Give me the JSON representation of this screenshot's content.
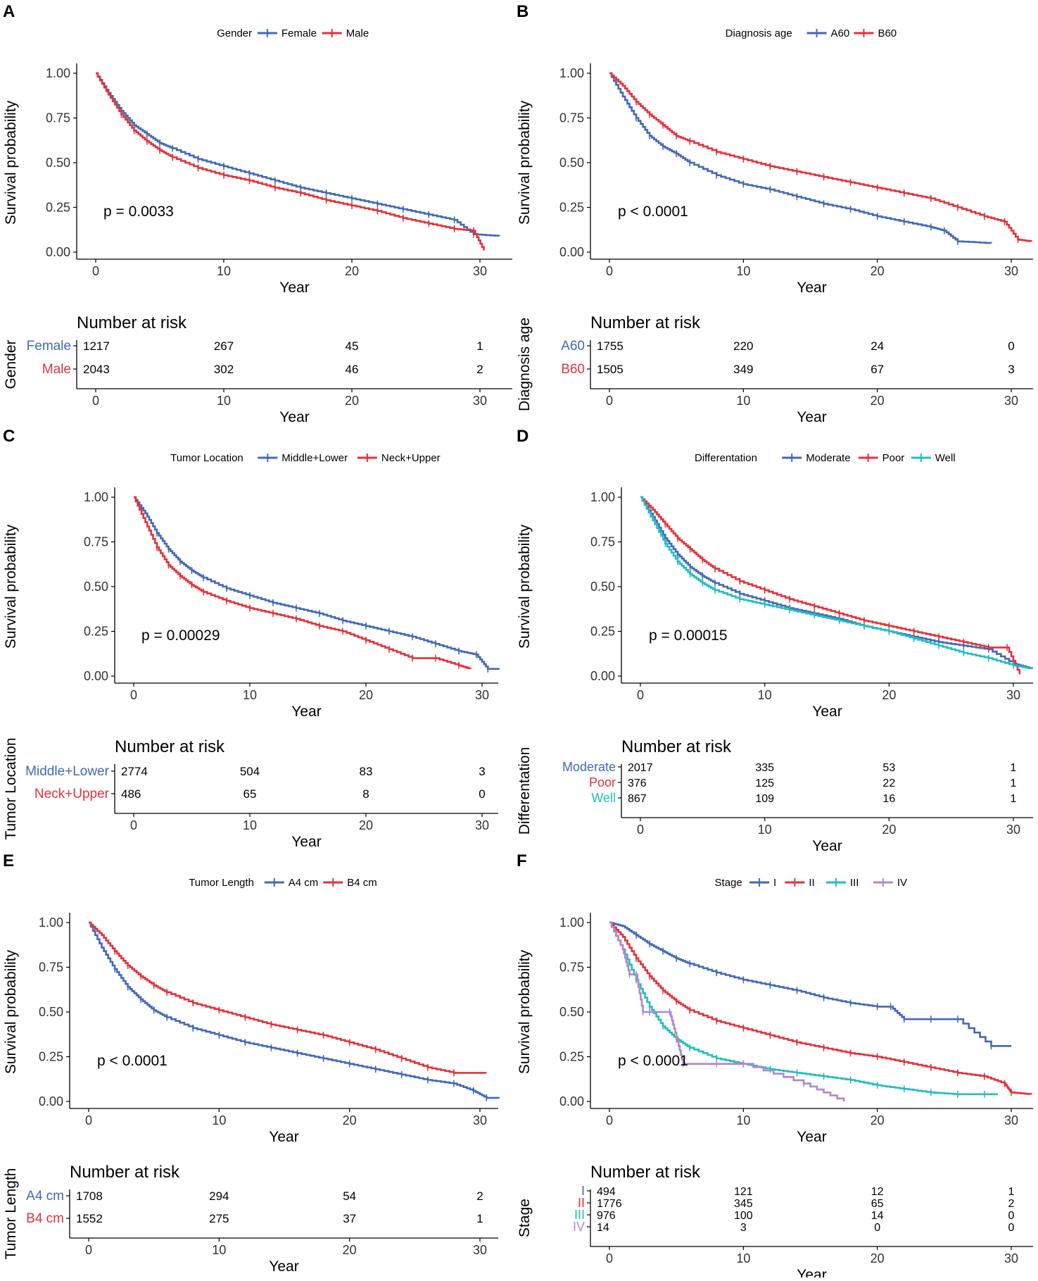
{
  "colors": {
    "blue": "#4169B6",
    "red": "#E2323B",
    "cyan": "#22BDBF",
    "purple": "#B088C8",
    "axis": "#000000"
  },
  "common": {
    "x_label": "Year",
    "y_label": "Survival probability",
    "risk_title": "Number at risk",
    "y_ticks": [
      "0.00",
      "0.25",
      "0.50",
      "0.75",
      "1.00"
    ],
    "x_ticks": [
      "0",
      "10",
      "20",
      "30"
    ]
  },
  "chart_data": [
    {
      "panel": "A",
      "type": "line",
      "legend_title": "Gender",
      "pvalue": "p = 0.0033",
      "xlim": [
        0,
        31.5
      ],
      "ylim": [
        0,
        1
      ],
      "risk_axis_title": "Gender",
      "series": [
        {
          "name": "Female",
          "color": "blue",
          "x": [
            0,
            1,
            2,
            3,
            4,
            5,
            6,
            8,
            10,
            12,
            14,
            16,
            18,
            20,
            22,
            24,
            26,
            28,
            29.5,
            31.5
          ],
          "y": [
            1.0,
            0.89,
            0.79,
            0.71,
            0.66,
            0.61,
            0.58,
            0.52,
            0.48,
            0.44,
            0.4,
            0.36,
            0.33,
            0.3,
            0.27,
            0.24,
            0.21,
            0.18,
            0.1,
            0.09
          ],
          "risk": [
            "1217",
            "267",
            "45",
            "1"
          ]
        },
        {
          "name": "Male",
          "color": "red",
          "x": [
            0,
            1,
            2,
            3,
            4,
            5,
            6,
            8,
            10,
            12,
            14,
            16,
            18,
            20,
            22,
            24,
            26,
            28,
            29.5,
            30.3
          ],
          "y": [
            1.0,
            0.88,
            0.77,
            0.68,
            0.62,
            0.57,
            0.53,
            0.47,
            0.43,
            0.4,
            0.36,
            0.33,
            0.29,
            0.26,
            0.23,
            0.19,
            0.16,
            0.13,
            0.12,
            0.01
          ],
          "risk": [
            "2043",
            "302",
            "46",
            "2"
          ]
        }
      ]
    },
    {
      "panel": "B",
      "type": "line",
      "legend_title": "Diagnosis age",
      "pvalue": "p < 0.0001",
      "xlim": [
        0,
        31.5
      ],
      "ylim": [
        0,
        1
      ],
      "risk_axis_title": "Diagnosis age",
      "series": [
        {
          "name": "A60",
          "color": "blue",
          "x": [
            0,
            1,
            2,
            3,
            4,
            5,
            6,
            8,
            10,
            12,
            14,
            16,
            18,
            20,
            22,
            24,
            25,
            26,
            28.5
          ],
          "y": [
            1.0,
            0.87,
            0.75,
            0.65,
            0.59,
            0.55,
            0.5,
            0.43,
            0.38,
            0.35,
            0.31,
            0.27,
            0.24,
            0.2,
            0.17,
            0.14,
            0.12,
            0.06,
            0.05
          ],
          "risk": [
            "1755",
            "220",
            "24",
            "0"
          ]
        },
        {
          "name": "B60",
          "color": "red",
          "x": [
            0,
            1,
            2,
            3,
            4,
            5,
            6,
            8,
            10,
            12,
            14,
            16,
            18,
            20,
            22,
            24,
            26,
            28,
            29.5,
            30.5,
            31.5
          ],
          "y": [
            1.0,
            0.93,
            0.84,
            0.77,
            0.71,
            0.65,
            0.62,
            0.56,
            0.52,
            0.48,
            0.45,
            0.42,
            0.39,
            0.36,
            0.33,
            0.3,
            0.25,
            0.2,
            0.17,
            0.07,
            0.06
          ],
          "risk": [
            "1505",
            "349",
            "67",
            "3"
          ]
        }
      ]
    },
    {
      "panel": "C",
      "type": "line",
      "legend_title": "Tumor Location",
      "pvalue": "p = 0.00029",
      "xlim": [
        0,
        31.5
      ],
      "ylim": [
        0,
        1
      ],
      "risk_axis_title": "Tumor Location",
      "series": [
        {
          "name": "Middle+Lower",
          "color": "blue",
          "x": [
            0,
            1,
            2,
            3,
            4,
            5,
            6,
            8,
            10,
            12,
            14,
            16,
            18,
            20,
            22,
            24,
            26,
            28,
            29.5,
            30.5,
            31.5
          ],
          "y": [
            1.0,
            0.91,
            0.8,
            0.71,
            0.64,
            0.59,
            0.55,
            0.49,
            0.45,
            0.41,
            0.38,
            0.35,
            0.31,
            0.28,
            0.25,
            0.22,
            0.18,
            0.14,
            0.12,
            0.04,
            0.04
          ],
          "risk": [
            "2774",
            "504",
            "83",
            "3"
          ]
        },
        {
          "name": "Neck+Upper",
          "color": "red",
          "x": [
            0,
            1,
            2,
            3,
            4,
            5,
            6,
            8,
            10,
            12,
            14,
            16,
            18,
            20,
            22,
            24,
            26,
            28,
            29
          ],
          "y": [
            1.0,
            0.86,
            0.72,
            0.62,
            0.56,
            0.51,
            0.47,
            0.42,
            0.38,
            0.35,
            0.32,
            0.28,
            0.25,
            0.2,
            0.15,
            0.1,
            0.1,
            0.06,
            0.04
          ],
          "risk": [
            "486",
            "65",
            "8",
            "0"
          ]
        }
      ]
    },
    {
      "panel": "D",
      "type": "line",
      "legend_title": "Differentation",
      "pvalue": "p = 0.00015",
      "xlim": [
        0,
        31.5
      ],
      "ylim": [
        0,
        1
      ],
      "risk_axis_title": "Differentation",
      "series": [
        {
          "name": "Moderate",
          "color": "blue",
          "x": [
            0,
            1,
            2,
            3,
            4,
            5,
            6,
            8,
            10,
            12,
            14,
            16,
            18,
            20,
            22,
            24,
            26,
            28,
            30,
            31.5
          ],
          "y": [
            1.0,
            0.89,
            0.77,
            0.68,
            0.61,
            0.56,
            0.52,
            0.46,
            0.42,
            0.38,
            0.35,
            0.32,
            0.28,
            0.25,
            0.22,
            0.19,
            0.17,
            0.15,
            0.07,
            0.04
          ],
          "risk": [
            "2017",
            "335",
            "53",
            "1"
          ]
        },
        {
          "name": "Poor",
          "color": "red",
          "x": [
            0,
            1,
            2,
            3,
            4,
            5,
            6,
            8,
            10,
            12,
            14,
            16,
            18,
            20,
            22,
            24,
            26,
            28,
            29.5,
            30.5
          ],
          "y": [
            1.0,
            0.93,
            0.85,
            0.77,
            0.71,
            0.65,
            0.6,
            0.53,
            0.48,
            0.43,
            0.39,
            0.35,
            0.31,
            0.28,
            0.25,
            0.22,
            0.19,
            0.16,
            0.16,
            0.01
          ],
          "risk": [
            "376",
            "125",
            "22",
            "1"
          ]
        },
        {
          "name": "Well",
          "color": "cyan",
          "x": [
            0,
            1,
            2,
            3,
            4,
            5,
            6,
            8,
            10,
            12,
            14,
            16,
            18,
            20,
            22,
            24,
            26,
            28,
            30,
            31.5
          ],
          "y": [
            1.0,
            0.87,
            0.74,
            0.64,
            0.57,
            0.52,
            0.48,
            0.43,
            0.4,
            0.37,
            0.34,
            0.31,
            0.28,
            0.25,
            0.21,
            0.17,
            0.13,
            0.1,
            0.06,
            0.04
          ],
          "risk": [
            "867",
            "109",
            "16",
            "1"
          ]
        }
      ]
    },
    {
      "panel": "E",
      "type": "line",
      "legend_title": "Tumor Length",
      "pvalue": "p < 0.0001",
      "xlim": [
        0,
        31.5
      ],
      "ylim": [
        0,
        1
      ],
      "risk_axis_title": "Tumor Length",
      "series": [
        {
          "name": "A4 cm",
          "color": "blue",
          "x": [
            0,
            1,
            2,
            3,
            4,
            5,
            6,
            8,
            10,
            12,
            14,
            16,
            18,
            20,
            22,
            24,
            26,
            28,
            29.5,
            30.5,
            31.5
          ],
          "y": [
            1.0,
            0.86,
            0.74,
            0.64,
            0.57,
            0.51,
            0.47,
            0.41,
            0.37,
            0.33,
            0.3,
            0.27,
            0.24,
            0.21,
            0.18,
            0.15,
            0.12,
            0.1,
            0.06,
            0.02,
            0.02
          ],
          "risk": [
            "1708",
            "294",
            "54",
            "2"
          ]
        },
        {
          "name": "B4 cm",
          "color": "red",
          "x": [
            0,
            1,
            2,
            3,
            4,
            5,
            6,
            8,
            10,
            12,
            14,
            16,
            18,
            20,
            22,
            24,
            26,
            28,
            30.5
          ],
          "y": [
            1.0,
            0.93,
            0.84,
            0.76,
            0.7,
            0.65,
            0.61,
            0.55,
            0.51,
            0.47,
            0.43,
            0.4,
            0.37,
            0.33,
            0.29,
            0.24,
            0.19,
            0.16,
            0.16
          ],
          "risk": [
            "1552",
            "275",
            "37",
            "1"
          ]
        }
      ]
    },
    {
      "panel": "F",
      "type": "line",
      "legend_title": "Stage",
      "pvalue": "p < 0.0001",
      "xlim": [
        0,
        31.5
      ],
      "ylim": [
        0,
        1
      ],
      "risk_axis_title": "Stage",
      "series": [
        {
          "name": "I",
          "color": "blue",
          "x": [
            0,
            1,
            2,
            3,
            4,
            5,
            6,
            8,
            10,
            12,
            14,
            16,
            18,
            20,
            21,
            22,
            24,
            26,
            28.5,
            30
          ],
          "y": [
            1.0,
            0.98,
            0.93,
            0.88,
            0.84,
            0.8,
            0.77,
            0.72,
            0.68,
            0.65,
            0.62,
            0.58,
            0.55,
            0.53,
            0.53,
            0.46,
            0.46,
            0.46,
            0.31,
            0.31
          ],
          "risk": [
            "494",
            "121",
            "12",
            "1"
          ]
        },
        {
          "name": "II",
          "color": "red",
          "x": [
            0,
            1,
            2,
            3,
            4,
            5,
            6,
            8,
            10,
            12,
            14,
            16,
            18,
            20,
            22,
            24,
            26,
            28,
            29.5,
            30,
            31.5
          ],
          "y": [
            1.0,
            0.92,
            0.8,
            0.7,
            0.62,
            0.56,
            0.51,
            0.45,
            0.41,
            0.37,
            0.33,
            0.3,
            0.27,
            0.25,
            0.22,
            0.19,
            0.16,
            0.14,
            0.1,
            0.05,
            0.04
          ],
          "risk": [
            "1776",
            "345",
            "65",
            "2"
          ]
        },
        {
          "name": "III",
          "color": "cyan",
          "x": [
            0,
            1,
            2,
            3,
            4,
            5,
            6,
            8,
            10,
            12,
            14,
            16,
            18,
            20,
            22,
            24,
            26,
            28,
            29
          ],
          "y": [
            1.0,
            0.85,
            0.68,
            0.53,
            0.42,
            0.35,
            0.3,
            0.24,
            0.21,
            0.18,
            0.16,
            0.14,
            0.12,
            0.09,
            0.07,
            0.05,
            0.04,
            0.04,
            0.04
          ],
          "risk": [
            "976",
            "100",
            "14",
            "0"
          ]
        },
        {
          "name": "IV",
          "color": "purple",
          "x": [
            0,
            1,
            1.5,
            2,
            2.5,
            3,
            4.5,
            5,
            5.5,
            8,
            10,
            14.5,
            17.5
          ],
          "y": [
            1.0,
            0.85,
            0.71,
            0.71,
            0.5,
            0.5,
            0.5,
            0.36,
            0.21,
            0.21,
            0.21,
            0.1,
            0.0
          ],
          "risk": [
            "14",
            "3",
            "0",
            "0"
          ]
        }
      ]
    }
  ]
}
